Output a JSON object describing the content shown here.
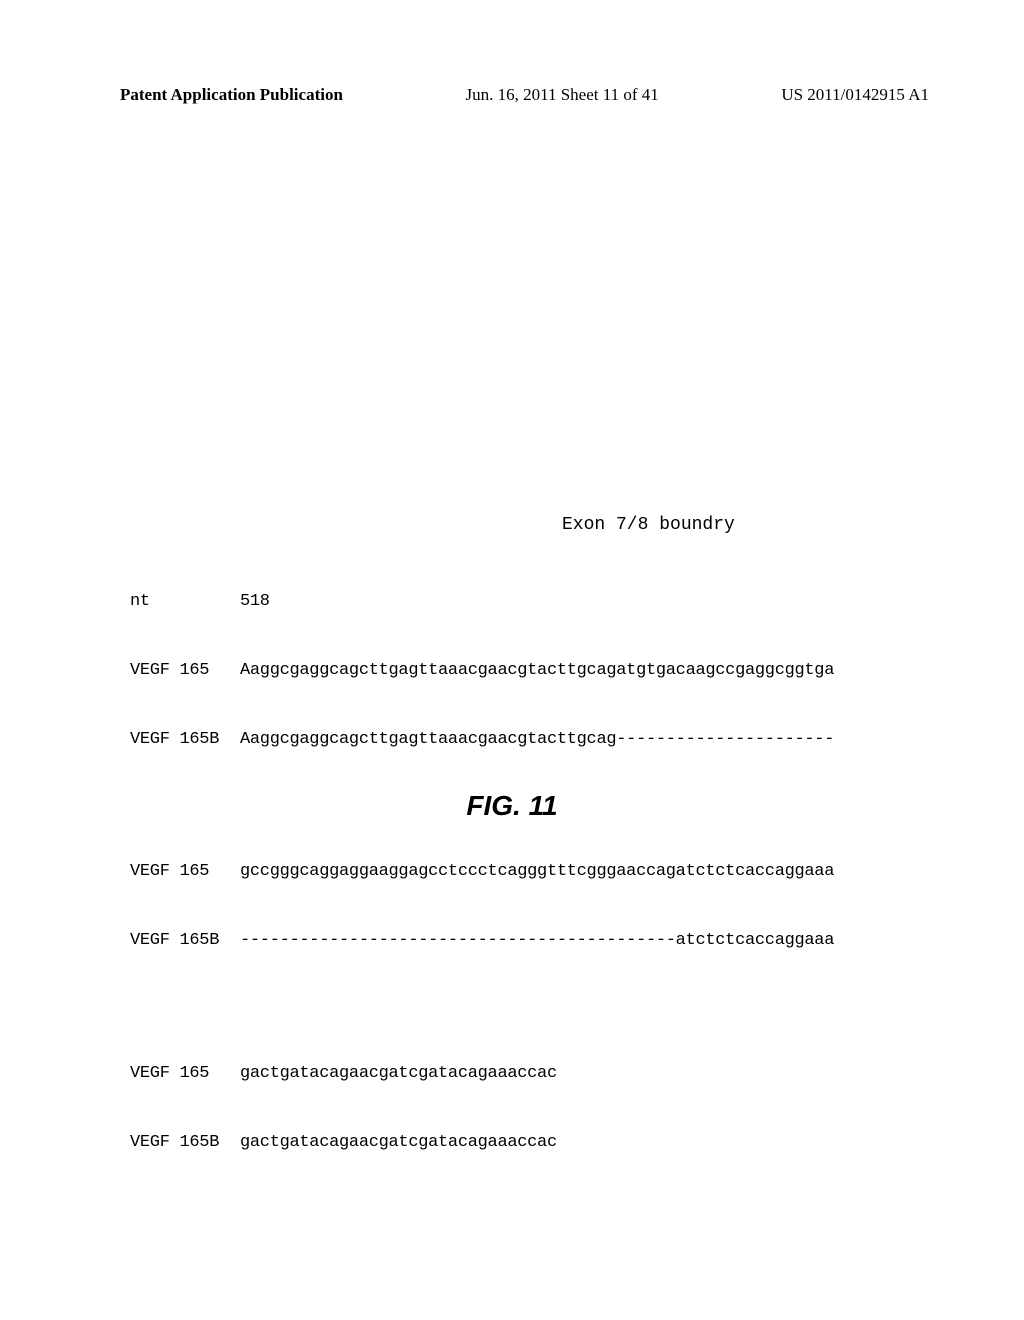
{
  "header": {
    "left": "Patent Application Publication",
    "center": "Jun. 16, 2011  Sheet 11 of 41",
    "right": "US 2011/0142915 A1"
  },
  "alignment": {
    "exon_label": "Exon 7/8 boundry",
    "nt_label": "nt",
    "nt_position": "518",
    "rows": [
      {
        "label": "VEGF 165",
        "sequence": "Aaggcgaggcagcttgagttaaacgaacgtacttgcagatgtgacaagccgaggcggtga"
      },
      {
        "label": "VEGF 165B",
        "sequence": "Aaggcgaggcagcttgagttaaacgaacgtacttgcag----------------------"
      }
    ],
    "rows2": [
      {
        "label": "VEGF 165",
        "sequence": "gccgggcaggaggaaggagcctccctcagggtttcgggaaccagatctctcaccaggaaa"
      },
      {
        "label": "VEGF 165B",
        "sequence": "--------------------------------------------atctctcaccaggaaa"
      }
    ],
    "rows3": [
      {
        "label": "VEGF 165",
        "sequence": "gactgatacagaacgatcgatacagaaaccac"
      },
      {
        "label": "VEGF 165B",
        "sequence": "gactgatacagaacgatcgatacagaaaccac"
      }
    ]
  },
  "figure": {
    "label": "FIG. 11"
  }
}
